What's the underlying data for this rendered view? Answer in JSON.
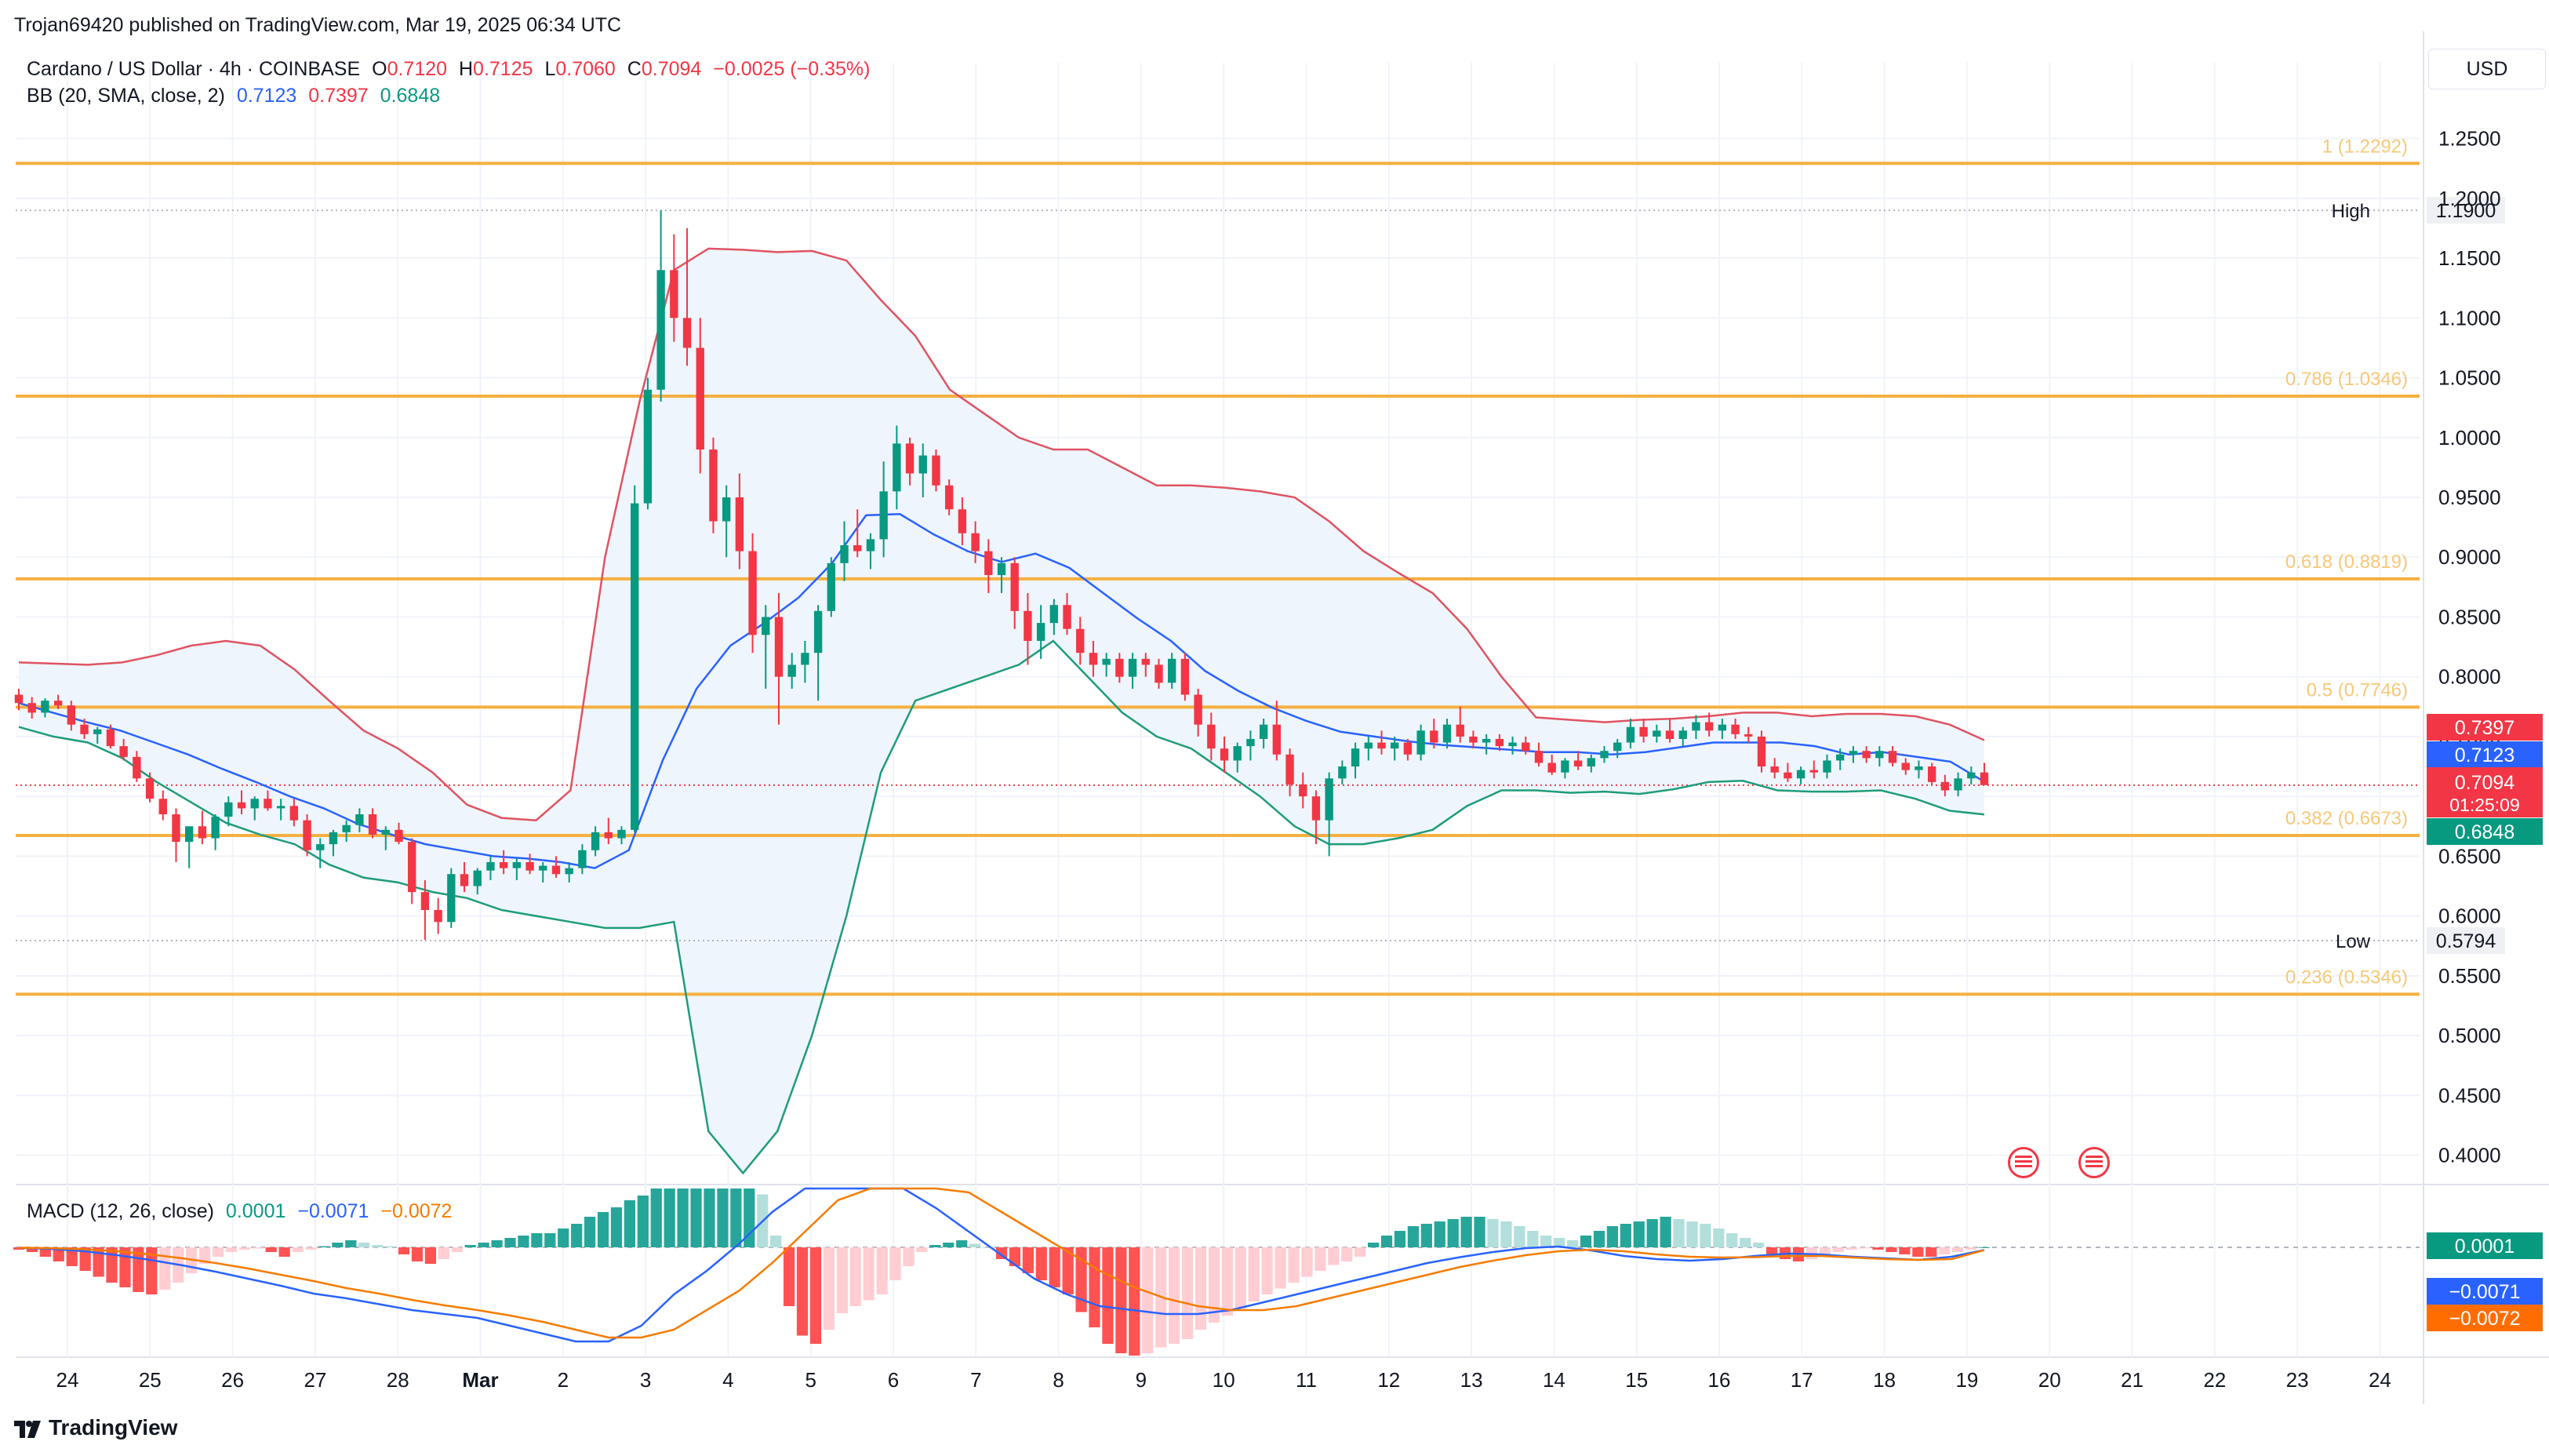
{
  "publisher_line": "Trojan69420 published on TradingView.com, Mar 19, 2025 06:34 UTC",
  "symbol": {
    "name": "Cardano / US Dollar · 4h · COINBASE",
    "open_label": "O",
    "open": "0.7120",
    "high_label": "H",
    "high": "0.7125",
    "low_label": "L",
    "low": "0.7060",
    "close_label": "C",
    "close": "0.7094",
    "change": "−0.0025 (−0.35%)"
  },
  "bb": {
    "label": "BB (20, SMA, close, 2)",
    "basis": "0.7123",
    "upper": "0.7397",
    "lower": "0.6848"
  },
  "macd": {
    "label": "MACD (12, 26, close)",
    "hist": "0.0001",
    "macd": "−0.0071",
    "signal": "−0.0072"
  },
  "currency_button": "USD",
  "brand": "TradingView",
  "colors": {
    "up": "#089981",
    "down": "#f23645",
    "fib": "#f5b041",
    "bb_upper": "#e05362",
    "bb_basis": "#2962ff",
    "bb_lower": "#1f9c7a",
    "bb_fill": "#eef5fc",
    "macd_line": "#2962ff",
    "signal_line": "#f57c00"
  },
  "chart_data": {
    "type": "candlestick",
    "timeframe": "4h",
    "y_axis_ticks": [
      "1.2500",
      "1.2000",
      "1.1500",
      "1.1000",
      "1.0500",
      "1.0000",
      "0.9500",
      "0.9000",
      "0.8500",
      "0.8000",
      "0.7500",
      "0.7000",
      "0.6500",
      "0.6000",
      "0.5500",
      "0.5000",
      "0.4500",
      "0.4000"
    ],
    "ylim": [
      0.382,
      1.274
    ],
    "x_axis_ticks": [
      "24",
      "25",
      "26",
      "27",
      "28",
      "Mar",
      "2",
      "3",
      "4",
      "5",
      "6",
      "7",
      "8",
      "9",
      "10",
      "11",
      "12",
      "13",
      "14",
      "15",
      "16",
      "17",
      "18",
      "19",
      "20",
      "21",
      "22",
      "23",
      "24"
    ],
    "fib_levels": [
      {
        "label": "1 (1.2292)",
        "value": 1.2292
      },
      {
        "label": "0.786 (1.0346)",
        "value": 1.0346
      },
      {
        "label": "0.618 (0.8819)",
        "value": 0.8819
      },
      {
        "label": "0.5 (0.7746)",
        "value": 0.7746
      },
      {
        "label": "0.382 (0.6673)",
        "value": 0.6673
      },
      {
        "label": "0.236 (0.5346)",
        "value": 0.5346
      }
    ],
    "high_marker": {
      "label": "High",
      "value": "1.1900"
    },
    "low_marker": {
      "label": "Low",
      "value": "0.5794"
    },
    "price_badges": {
      "upper": "0.7397",
      "basis": "0.7123",
      "last": "0.7094",
      "countdown": "01:25:09",
      "lower": "0.6848"
    },
    "macd_badges": {
      "hist": "0.0001",
      "macd": "−0.0071",
      "signal": "−0.0072"
    },
    "candles_ohlc": [
      [
        0.785,
        0.79,
        0.772,
        0.778
      ],
      [
        0.778,
        0.783,
        0.765,
        0.77
      ],
      [
        0.77,
        0.782,
        0.766,
        0.78
      ],
      [
        0.78,
        0.785,
        0.773,
        0.776
      ],
      [
        0.776,
        0.78,
        0.755,
        0.76
      ],
      [
        0.76,
        0.765,
        0.748,
        0.752
      ],
      [
        0.752,
        0.758,
        0.744,
        0.756
      ],
      [
        0.756,
        0.76,
        0.74,
        0.742
      ],
      [
        0.742,
        0.748,
        0.73,
        0.733
      ],
      [
        0.733,
        0.738,
        0.712,
        0.715
      ],
      [
        0.715,
        0.72,
        0.695,
        0.698
      ],
      [
        0.698,
        0.705,
        0.68,
        0.685
      ],
      [
        0.685,
        0.69,
        0.645,
        0.662
      ],
      [
        0.662,
        0.67,
        0.64,
        0.675
      ],
      [
        0.675,
        0.688,
        0.66,
        0.665
      ],
      [
        0.665,
        0.685,
        0.655,
        0.683
      ],
      [
        0.683,
        0.7,
        0.675,
        0.695
      ],
      [
        0.695,
        0.705,
        0.685,
        0.69
      ],
      [
        0.69,
        0.7,
        0.68,
        0.698
      ],
      [
        0.698,
        0.705,
        0.688,
        0.69
      ],
      [
        0.69,
        0.698,
        0.68,
        0.692
      ],
      [
        0.692,
        0.698,
        0.675,
        0.68
      ],
      [
        0.68,
        0.685,
        0.65,
        0.655
      ],
      [
        0.655,
        0.665,
        0.64,
        0.66
      ],
      [
        0.66,
        0.672,
        0.65,
        0.67
      ],
      [
        0.67,
        0.68,
        0.662,
        0.676
      ],
      [
        0.676,
        0.69,
        0.67,
        0.685
      ],
      [
        0.685,
        0.69,
        0.665,
        0.668
      ],
      [
        0.668,
        0.675,
        0.655,
        0.672
      ],
      [
        0.672,
        0.678,
        0.66,
        0.662
      ],
      [
        0.662,
        0.665,
        0.61,
        0.62
      ],
      [
        0.62,
        0.63,
        0.58,
        0.605
      ],
      [
        0.605,
        0.615,
        0.585,
        0.595
      ],
      [
        0.595,
        0.64,
        0.59,
        0.635
      ],
      [
        0.635,
        0.645,
        0.62,
        0.625
      ],
      [
        0.625,
        0.64,
        0.618,
        0.638
      ],
      [
        0.638,
        0.65,
        0.63,
        0.645
      ],
      [
        0.645,
        0.655,
        0.635,
        0.64
      ],
      [
        0.64,
        0.648,
        0.63,
        0.645
      ],
      [
        0.645,
        0.652,
        0.635,
        0.638
      ],
      [
        0.638,
        0.645,
        0.628,
        0.642
      ],
      [
        0.642,
        0.65,
        0.632,
        0.635
      ],
      [
        0.635,
        0.645,
        0.628,
        0.64
      ],
      [
        0.64,
        0.66,
        0.635,
        0.655
      ],
      [
        0.655,
        0.675,
        0.65,
        0.67
      ],
      [
        0.67,
        0.682,
        0.66,
        0.665
      ],
      [
        0.665,
        0.675,
        0.66,
        0.672
      ],
      [
        0.672,
        0.96,
        0.67,
        0.945
      ],
      [
        0.945,
        1.05,
        0.94,
        1.04
      ],
      [
        1.04,
        1.19,
        1.03,
        1.14
      ],
      [
        1.14,
        1.17,
        1.08,
        1.1
      ],
      [
        1.1,
        1.175,
        1.06,
        1.075
      ],
      [
        1.075,
        1.1,
        0.97,
        0.99
      ],
      [
        0.99,
        1.0,
        0.92,
        0.93
      ],
      [
        0.93,
        0.96,
        0.9,
        0.95
      ],
      [
        0.95,
        0.97,
        0.89,
        0.905
      ],
      [
        0.905,
        0.92,
        0.82,
        0.835
      ],
      [
        0.835,
        0.86,
        0.79,
        0.85
      ],
      [
        0.85,
        0.87,
        0.76,
        0.8
      ],
      [
        0.8,
        0.82,
        0.79,
        0.81
      ],
      [
        0.81,
        0.83,
        0.795,
        0.82
      ],
      [
        0.82,
        0.86,
        0.78,
        0.855
      ],
      [
        0.855,
        0.9,
        0.85,
        0.895
      ],
      [
        0.895,
        0.93,
        0.88,
        0.91
      ],
      [
        0.91,
        0.94,
        0.9,
        0.905
      ],
      [
        0.905,
        0.92,
        0.89,
        0.915
      ],
      [
        0.915,
        0.98,
        0.9,
        0.955
      ],
      [
        0.955,
        1.01,
        0.94,
        0.995
      ],
      [
        0.995,
        1.0,
        0.96,
        0.97
      ],
      [
        0.97,
        0.995,
        0.95,
        0.985
      ],
      [
        0.985,
        0.99,
        0.955,
        0.96
      ],
      [
        0.96,
        0.965,
        0.935,
        0.94
      ],
      [
        0.94,
        0.95,
        0.91,
        0.92
      ],
      [
        0.92,
        0.93,
        0.895,
        0.905
      ],
      [
        0.905,
        0.915,
        0.87,
        0.885
      ],
      [
        0.885,
        0.9,
        0.87,
        0.895
      ],
      [
        0.895,
        0.9,
        0.84,
        0.855
      ],
      [
        0.855,
        0.87,
        0.81,
        0.83
      ],
      [
        0.83,
        0.86,
        0.815,
        0.845
      ],
      [
        0.845,
        0.865,
        0.835,
        0.86
      ],
      [
        0.86,
        0.87,
        0.835,
        0.84
      ],
      [
        0.84,
        0.85,
        0.81,
        0.82
      ],
      [
        0.82,
        0.83,
        0.8,
        0.81
      ],
      [
        0.81,
        0.82,
        0.8,
        0.815
      ],
      [
        0.815,
        0.82,
        0.795,
        0.8
      ],
      [
        0.8,
        0.82,
        0.79,
        0.815
      ],
      [
        0.815,
        0.82,
        0.8,
        0.81
      ],
      [
        0.81,
        0.815,
        0.79,
        0.795
      ],
      [
        0.795,
        0.82,
        0.79,
        0.815
      ],
      [
        0.815,
        0.82,
        0.78,
        0.785
      ],
      [
        0.785,
        0.79,
        0.75,
        0.76
      ],
      [
        0.76,
        0.77,
        0.73,
        0.74
      ],
      [
        0.74,
        0.75,
        0.72,
        0.73
      ],
      [
        0.73,
        0.745,
        0.72,
        0.742
      ],
      [
        0.742,
        0.755,
        0.73,
        0.748
      ],
      [
        0.748,
        0.765,
        0.74,
        0.76
      ],
      [
        0.76,
        0.78,
        0.73,
        0.735
      ],
      [
        0.735,
        0.74,
        0.7,
        0.71
      ],
      [
        0.71,
        0.72,
        0.69,
        0.7
      ],
      [
        0.7,
        0.705,
        0.66,
        0.68
      ],
      [
        0.68,
        0.72,
        0.65,
        0.715
      ],
      [
        0.715,
        0.73,
        0.71,
        0.725
      ],
      [
        0.725,
        0.745,
        0.715,
        0.74
      ],
      [
        0.74,
        0.75,
        0.73,
        0.745
      ],
      [
        0.745,
        0.755,
        0.735,
        0.74
      ],
      [
        0.74,
        0.75,
        0.73,
        0.745
      ],
      [
        0.745,
        0.748,
        0.73,
        0.735
      ],
      [
        0.735,
        0.76,
        0.73,
        0.755
      ],
      [
        0.755,
        0.765,
        0.74,
        0.745
      ],
      [
        0.745,
        0.765,
        0.74,
        0.76
      ],
      [
        0.76,
        0.775,
        0.745,
        0.75
      ],
      [
        0.75,
        0.755,
        0.74,
        0.745
      ],
      [
        0.745,
        0.752,
        0.735,
        0.748
      ],
      [
        0.748,
        0.752,
        0.738,
        0.742
      ],
      [
        0.742,
        0.75,
        0.735,
        0.745
      ],
      [
        0.745,
        0.75,
        0.735,
        0.738
      ],
      [
        0.738,
        0.745,
        0.725,
        0.728
      ],
      [
        0.728,
        0.735,
        0.718,
        0.72
      ],
      [
        0.72,
        0.732,
        0.715,
        0.73
      ],
      [
        0.73,
        0.738,
        0.722,
        0.725
      ],
      [
        0.725,
        0.735,
        0.72,
        0.732
      ],
      [
        0.732,
        0.742,
        0.728,
        0.738
      ],
      [
        0.738,
        0.748,
        0.732,
        0.745
      ],
      [
        0.745,
        0.765,
        0.74,
        0.758
      ],
      [
        0.758,
        0.765,
        0.745,
        0.75
      ],
      [
        0.75,
        0.76,
        0.745,
        0.755
      ],
      [
        0.755,
        0.765,
        0.745,
        0.748
      ],
      [
        0.748,
        0.758,
        0.742,
        0.755
      ],
      [
        0.755,
        0.768,
        0.748,
        0.762
      ],
      [
        0.762,
        0.77,
        0.75,
        0.755
      ],
      [
        0.755,
        0.765,
        0.748,
        0.76
      ],
      [
        0.76,
        0.765,
        0.748,
        0.752
      ],
      [
        0.752,
        0.758,
        0.745,
        0.75
      ],
      [
        0.75,
        0.755,
        0.72,
        0.725
      ],
      [
        0.725,
        0.732,
        0.715,
        0.72
      ],
      [
        0.72,
        0.728,
        0.712,
        0.715
      ],
      [
        0.715,
        0.725,
        0.71,
        0.722
      ],
      [
        0.722,
        0.73,
        0.715,
        0.72
      ],
      [
        0.72,
        0.735,
        0.715,
        0.73
      ],
      [
        0.73,
        0.74,
        0.722,
        0.735
      ],
      [
        0.735,
        0.742,
        0.728,
        0.738
      ],
      [
        0.738,
        0.742,
        0.728,
        0.732
      ],
      [
        0.732,
        0.742,
        0.725,
        0.738
      ],
      [
        0.738,
        0.742,
        0.725,
        0.728
      ],
      [
        0.728,
        0.732,
        0.718,
        0.722
      ],
      [
        0.722,
        0.73,
        0.715,
        0.725
      ],
      [
        0.725,
        0.728,
        0.71,
        0.712
      ],
      [
        0.712,
        0.718,
        0.7,
        0.705
      ],
      [
        0.705,
        0.72,
        0.7,
        0.715
      ],
      [
        0.715,
        0.725,
        0.71,
        0.72
      ],
      [
        0.72,
        0.728,
        0.712,
        0.7094
      ]
    ],
    "bb_upper": [
      0.812,
      0.811,
      0.81,
      0.812,
      0.818,
      0.826,
      0.83,
      0.826,
      0.806,
      0.78,
      0.755,
      0.74,
      0.72,
      0.693,
      0.682,
      0.68,
      0.705,
      0.9,
      1.03,
      1.14,
      1.158,
      1.157,
      1.155,
      1.156,
      1.148,
      1.115,
      1.085,
      1.04,
      1.02,
      1.0,
      0.99,
      0.99,
      0.975,
      0.96,
      0.96,
      0.958,
      0.955,
      0.95,
      0.93,
      0.905,
      0.887,
      0.87,
      0.84,
      0.8,
      0.766,
      0.764,
      0.762,
      0.764,
      0.765,
      0.767,
      0.77,
      0.77,
      0.767,
      0.769,
      0.769,
      0.767,
      0.76,
      0.747
    ],
    "bb_basis": [
      0.778,
      0.77,
      0.762,
      0.755,
      0.745,
      0.735,
      0.723,
      0.712,
      0.7,
      0.69,
      0.677,
      0.668,
      0.66,
      0.655,
      0.65,
      0.648,
      0.645,
      0.64,
      0.655,
      0.73,
      0.79,
      0.826,
      0.845,
      0.866,
      0.895,
      0.935,
      0.936,
      0.919,
      0.905,
      0.896,
      0.903,
      0.891,
      0.87,
      0.849,
      0.83,
      0.805,
      0.788,
      0.774,
      0.763,
      0.754,
      0.75,
      0.746,
      0.743,
      0.741,
      0.739,
      0.737,
      0.737,
      0.735,
      0.737,
      0.741,
      0.745,
      0.745,
      0.745,
      0.742,
      0.735,
      0.737,
      0.733,
      0.729,
      0.7123
    ],
    "bb_lower": [
      0.758,
      0.75,
      0.745,
      0.732,
      0.712,
      0.695,
      0.678,
      0.668,
      0.66,
      0.643,
      0.632,
      0.628,
      0.62,
      0.615,
      0.605,
      0.6,
      0.595,
      0.59,
      0.59,
      0.595,
      0.42,
      0.385,
      0.42,
      0.5,
      0.6,
      0.72,
      0.78,
      0.79,
      0.8,
      0.81,
      0.83,
      0.8,
      0.77,
      0.75,
      0.74,
      0.72,
      0.7,
      0.675,
      0.66,
      0.66,
      0.665,
      0.672,
      0.692,
      0.705,
      0.705,
      0.703,
      0.704,
      0.702,
      0.706,
      0.712,
      0.713,
      0.705,
      0.704,
      0.704,
      0.705,
      0.698,
      0.688,
      0.6848
    ],
    "macd_histogram": [
      -0.002,
      -0.004,
      -0.008,
      -0.012,
      -0.016,
      -0.02,
      -0.025,
      -0.03,
      -0.034,
      -0.038,
      -0.04,
      -0.036,
      -0.03,
      -0.022,
      -0.014,
      -0.008,
      -0.004,
      -0.002,
      -0.001,
      -0.004,
      -0.008,
      -0.004,
      -0.002,
      0.001,
      0.004,
      0.006,
      0.004,
      0.002,
      0.001,
      -0.006,
      -0.012,
      -0.014,
      -0.01,
      -0.004,
      0.002,
      0.004,
      0.006,
      0.008,
      0.01,
      0.012,
      0.012,
      0.016,
      0.02,
      0.026,
      0.03,
      0.034,
      0.04,
      0.044,
      0.05,
      0.058,
      0.062,
      0.062,
      0.062,
      0.062,
      0.062,
      0.062,
      0.045,
      0.01,
      -0.05,
      -0.075,
      -0.082,
      -0.07,
      -0.056,
      -0.05,
      -0.045,
      -0.04,
      -0.028,
      -0.016,
      -0.004,
      0.002,
      0.004,
      0.006,
      0.003,
      0.0,
      -0.01,
      -0.016,
      -0.022,
      -0.028,
      -0.034,
      -0.04,
      -0.055,
      -0.068,
      -0.082,
      -0.09,
      -0.094,
      -0.09,
      -0.085,
      -0.082,
      -0.078,
      -0.07,
      -0.064,
      -0.058,
      -0.052,
      -0.046,
      -0.04,
      -0.035,
      -0.03,
      -0.025,
      -0.02,
      -0.015,
      -0.012,
      -0.008,
      0.004,
      0.01,
      0.014,
      0.018,
      0.02,
      0.022,
      0.024,
      0.026,
      0.026,
      0.024,
      0.022,
      0.018,
      0.014,
      0.01,
      0.008,
      0.006,
      0.01,
      0.014,
      0.018,
      0.02,
      0.022,
      0.024,
      0.026,
      0.024,
      0.022,
      0.02,
      0.016,
      0.012,
      0.008,
      0.004,
      -0.006,
      -0.01,
      -0.012,
      -0.01,
      -0.008,
      -0.004,
      -0.002,
      -0.001,
      -0.002,
      -0.004,
      -0.006,
      -0.008,
      -0.008,
      -0.006,
      -0.004,
      -0.002,
      0.0001
    ],
    "macd_line": [
      -0.001,
      -0.004,
      -0.01,
      -0.02,
      -0.032,
      -0.046,
      -0.062,
      -0.08,
      -0.098,
      -0.118,
      -0.13,
      -0.145,
      -0.16,
      -0.17,
      -0.18,
      -0.2,
      -0.22,
      -0.24,
      -0.24,
      -0.2,
      -0.12,
      -0.06,
      0.01,
      0.09,
      0.17,
      0.25,
      0.23,
      0.17,
      0.1,
      0.04,
      -0.02,
      -0.08,
      -0.12,
      -0.15,
      -0.16,
      -0.17,
      -0.17,
      -0.16,
      -0.14,
      -0.12,
      -0.1,
      -0.08,
      -0.06,
      -0.04,
      -0.025,
      -0.012,
      -0.002,
      0.002,
      -0.008,
      -0.022,
      -0.03,
      -0.034,
      -0.03,
      -0.022,
      -0.016,
      -0.018,
      -0.024,
      -0.028,
      -0.032,
      -0.024,
      -0.0071
    ],
    "signal_line": [
      -0.001,
      -0.002,
      -0.005,
      -0.01,
      -0.018,
      -0.028,
      -0.04,
      -0.054,
      -0.07,
      -0.086,
      -0.104,
      -0.118,
      -0.134,
      -0.148,
      -0.16,
      -0.174,
      -0.19,
      -0.21,
      -0.23,
      -0.23,
      -0.21,
      -0.16,
      -0.11,
      -0.04,
      0.04,
      0.12,
      0.19,
      0.22,
      0.19,
      0.14,
      0.09,
      0.04,
      -0.01,
      -0.06,
      -0.1,
      -0.13,
      -0.15,
      -0.16,
      -0.16,
      -0.15,
      -0.13,
      -0.11,
      -0.09,
      -0.07,
      -0.05,
      -0.034,
      -0.02,
      -0.01,
      -0.006,
      -0.01,
      -0.018,
      -0.024,
      -0.026,
      -0.025,
      -0.022,
      -0.022,
      -0.026,
      -0.03,
      -0.032,
      -0.03,
      -0.0072
    ]
  }
}
